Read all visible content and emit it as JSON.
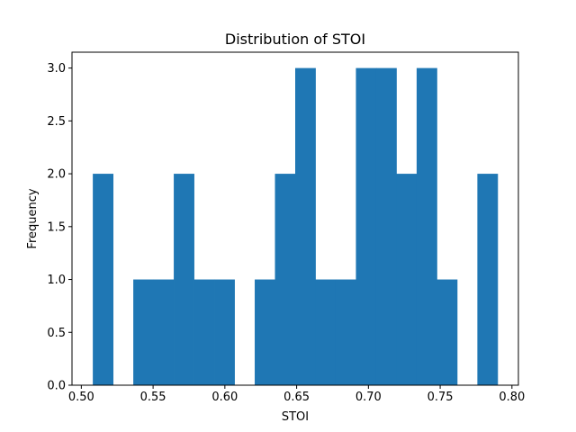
{
  "chart_data": {
    "type": "bar",
    "title": "Distribution of STOI",
    "xlabel": "STOI",
    "ylabel": "Frequency",
    "xlim": [
      0.4935,
      0.8045
    ],
    "ylim": [
      0,
      3.15
    ],
    "x_ticks": [
      "0.50",
      "0.55",
      "0.60",
      "0.65",
      "0.70",
      "0.75",
      "0.80"
    ],
    "y_ticks": [
      "0.0",
      "0.5",
      "1.0",
      "1.5",
      "2.0",
      "2.5",
      "3.0"
    ],
    "bin_edges": [
      0.508,
      0.5221,
      0.5362,
      0.5503,
      0.5644,
      0.5785,
      0.5926,
      0.6067,
      0.6208,
      0.6349,
      0.649,
      0.6631,
      0.6772,
      0.6913,
      0.7054,
      0.7195,
      0.7336,
      0.7477,
      0.7618,
      0.7759,
      0.79
    ],
    "counts": [
      2,
      0,
      1,
      1,
      2,
      1,
      1,
      0,
      1,
      2,
      3,
      1,
      1,
      3,
      3,
      2,
      3,
      1,
      0,
      2
    ],
    "grid": false,
    "color": "#1f77b4"
  }
}
